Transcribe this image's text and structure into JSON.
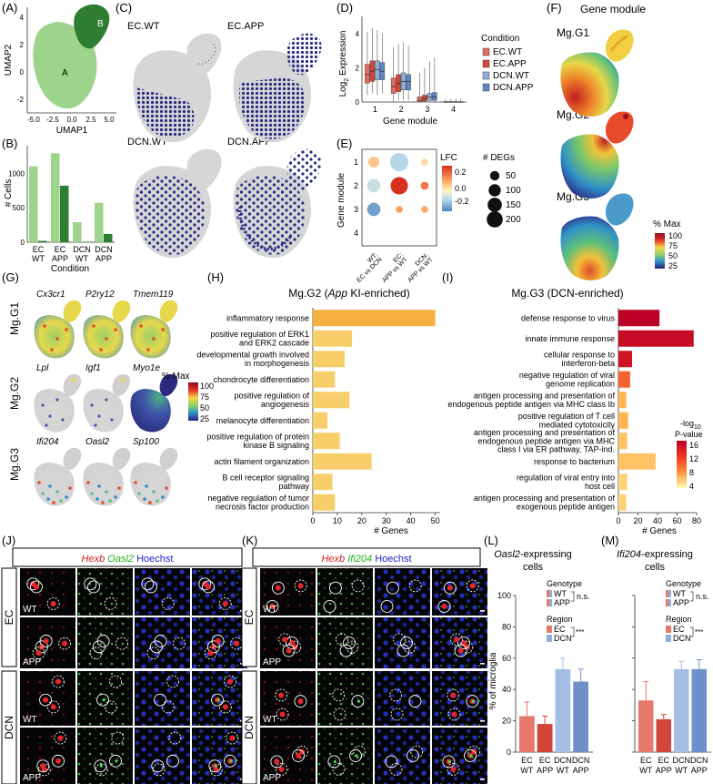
{
  "figure": {
    "panels": {
      "A": "(A)",
      "B": "(B)",
      "C": "(C)",
      "D": "(D)",
      "E": "(E)",
      "F": "(F)",
      "G": "(G)",
      "H": "(H)",
      "I": "(I)",
      "J": "(J)",
      "K": "(K)",
      "L": "(L)",
      "M": "(M)"
    },
    "panel_a": {
      "xlabel": "UMAP1",
      "ylabel": "UMAP2",
      "xticks": [
        "-5.0",
        "-2.5",
        "0.0",
        "2.5",
        "5.0"
      ],
      "yticks": [
        "4",
        "2",
        "0",
        "-2"
      ],
      "cluster_a": "A",
      "cluster_b": "B",
      "color_a": "#9dd48b",
      "color_b": "#2f7d32"
    },
    "panel_c": {
      "titles": [
        "EC.WT",
        "EC.APP",
        "DCN.WT",
        "DCN.APP"
      ],
      "cell_color": "#2a2a86"
    },
    "panel_f": {
      "title": "Gene module",
      "modules": [
        "Mg.G1",
        "Mg.G2",
        "Mg.G3"
      ],
      "scale_title": "% Max",
      "scale_ticks": [
        "100",
        "75",
        "50",
        "25"
      ]
    },
    "panel_g": {
      "rows": [
        "Mg.G1",
        "Mg.G2",
        "Mg.G3"
      ],
      "genes": [
        [
          "Cx3cr1",
          "P2ry12",
          "Tmem119"
        ],
        [
          "Lpl",
          "Igf1",
          "Myo1e"
        ],
        [
          "Ifi204",
          "Oasl2",
          "Sp100"
        ]
      ],
      "scale_title": "% Max",
      "scale_ticks": [
        "100",
        "75",
        "50",
        "25"
      ]
    },
    "panel_e": {
      "ylabel": "Gene module",
      "modules": [
        "1",
        "2",
        "3",
        "4"
      ],
      "columns": [
        [
          "WT:",
          "EC vs DCN"
        ],
        [
          "EC:",
          "APP vs WT"
        ],
        [
          "DCN:",
          "APP vs WT"
        ]
      ],
      "lfc_title": "LFC",
      "lfc_ticks": [
        "0.2",
        "0.0",
        "-0.2"
      ],
      "degs_title": "# DEGs",
      "degs_ticks": [
        "50",
        "100",
        "150",
        "200"
      ]
    },
    "panel_j": {
      "channels": [
        "Hexb",
        "Oasl2",
        "Hoechst"
      ],
      "channel_colors": [
        "#d62020",
        "#1db31d",
        "#2323c8"
      ],
      "row_labels": [
        "WT",
        "APP",
        "WT",
        "APP"
      ],
      "groups": [
        "EC",
        "DCN"
      ]
    },
    "panel_k": {
      "channels": [
        "Hexb",
        "Ifi204",
        "Hoechst"
      ],
      "channel_colors": [
        "#d62020",
        "#1db31d",
        "#2323c8"
      ],
      "row_labels": [
        "WT",
        "APP",
        "WT",
        "APP"
      ],
      "groups": [
        "EC",
        "DCN"
      ]
    }
  },
  "chart_data": [
    {
      "id": "B",
      "type": "bar",
      "categories": [
        [
          "EC",
          "WT"
        ],
        [
          "EC",
          "APP"
        ],
        [
          "DCN",
          "WT"
        ],
        [
          "DCN",
          "APP"
        ]
      ],
      "series": [
        {
          "name": "A",
          "values": [
            1100,
            1290,
            290,
            570
          ],
          "color": "#9dd48b"
        },
        {
          "name": "B",
          "values": [
            20,
            820,
            5,
            120
          ],
          "color": "#2f7d32"
        }
      ],
      "ylim": [
        0,
        1400
      ],
      "yticks": [
        "0",
        "500",
        "1000"
      ],
      "xlabel": "Condition",
      "ylabel": "# Cells"
    },
    {
      "id": "D",
      "type": "box",
      "categories": [
        "1",
        "2",
        "3",
        "4"
      ],
      "groups": [
        {
          "name": "EC.WT",
          "color": "#e46b5f"
        },
        {
          "name": "EC.APP",
          "color": "#d2453a"
        },
        {
          "name": "DCN.WT",
          "color": "#8fb0dd"
        },
        {
          "name": "DCN.APP",
          "color": "#5f87c4"
        }
      ],
      "boxes": [
        [
          [
            0.4,
            1.1,
            1.6,
            2.2,
            4.1
          ],
          [
            0.5,
            1.2,
            1.8,
            2.4,
            4.3
          ],
          [
            0.4,
            1.3,
            1.9,
            2.4,
            4.2
          ],
          [
            0.5,
            1.3,
            1.8,
            2.3,
            4.0
          ]
        ],
        [
          [
            0.0,
            0.5,
            0.9,
            1.4,
            3.2
          ],
          [
            0.1,
            0.6,
            1.1,
            1.6,
            3.4
          ],
          [
            0.1,
            0.7,
            1.2,
            1.7,
            3.5
          ],
          [
            0.1,
            0.7,
            1.2,
            1.6,
            3.3
          ]
        ],
        [
          [
            0.0,
            0.0,
            0.1,
            0.3,
            1.7
          ],
          [
            0.0,
            0.05,
            0.2,
            0.4,
            2.0
          ],
          [
            0.0,
            0.1,
            0.3,
            0.5,
            2.4
          ],
          [
            0.0,
            0.1,
            0.3,
            0.55,
            2.6
          ]
        ],
        [
          [
            0.0,
            0.0,
            0.0,
            0.02,
            0.15
          ],
          [
            0.0,
            0.0,
            0.0,
            0.02,
            0.15
          ],
          [
            0.0,
            0.0,
            0.0,
            0.02,
            0.18
          ],
          [
            0.0,
            0.0,
            0.0,
            0.02,
            0.2
          ]
        ]
      ],
      "ylim": [
        0,
        5
      ],
      "yticks": [
        "0",
        "2",
        "4"
      ],
      "xlabel": "Gene module",
      "ylabel": "Log",
      "ylabel_sub": "2",
      "ylabel_rest": " Expression",
      "legend_title": "Condition"
    },
    {
      "id": "E",
      "type": "dot",
      "points": [
        {
          "col": 0,
          "row": 0,
          "lfc": 0.05,
          "degs": 40
        },
        {
          "col": 0,
          "row": 1,
          "lfc": -0.12,
          "degs": 70
        },
        {
          "col": 0,
          "row": 2,
          "lfc": -0.25,
          "degs": 70
        },
        {
          "col": 1,
          "row": 0,
          "lfc": -0.15,
          "degs": 160
        },
        {
          "col": 1,
          "row": 1,
          "lfc": 0.3,
          "degs": 140
        },
        {
          "col": 1,
          "row": 2,
          "lfc": 0.12,
          "degs": 8
        },
        {
          "col": 2,
          "row": 0,
          "lfc": 0.02,
          "degs": 8
        },
        {
          "col": 2,
          "row": 1,
          "lfc": 0.18,
          "degs": 14
        },
        {
          "col": 2,
          "row": 2,
          "lfc": 0.1,
          "degs": 8
        }
      ],
      "lfc_range": [
        -0.3,
        0.3
      ],
      "degs_range": [
        0,
        200
      ]
    },
    {
      "id": "H",
      "type": "bar-horizontal",
      "title_prefix": "Mg.G2 (",
      "title_italic": "App",
      "title_suffix": " KI-enriched)",
      "terms": [
        [
          "inflammatory response"
        ],
        [
          "positive regulation of ERK1",
          "and ERK2 cascade"
        ],
        [
          "developmental growth involved",
          "in morphogenesis"
        ],
        [
          "chondrocyte differentiation"
        ],
        [
          "positive regulation of",
          "angiogenesis"
        ],
        [
          "melanocyte differentiation"
        ],
        [
          "positive regulation of protein",
          "kinase B signaling"
        ],
        [
          "actin filament organization"
        ],
        [
          "B cell receptor signaling",
          "pathway"
        ],
        [
          "negative regulation of tumor",
          "necrosis factor production"
        ]
      ],
      "values": [
        50,
        16,
        13,
        9,
        15,
        6,
        11,
        24,
        8,
        9
      ],
      "pvals": [
        7,
        5,
        5,
        4,
        5,
        4,
        4,
        5,
        4,
        4
      ],
      "xlim": [
        0,
        52
      ],
      "xticks": [
        "0",
        "10",
        "20",
        "30",
        "40",
        "50"
      ],
      "xtick_values": [
        0,
        10,
        20,
        30,
        40,
        50
      ],
      "xlabel": "# Genes"
    },
    {
      "id": "I",
      "type": "bar-horizontal",
      "title": "Mg.G3 (DCN-enriched)",
      "terms": [
        [
          "defense response to virus"
        ],
        [
          "innate immune response"
        ],
        [
          "cellular response to",
          "interferon-beta"
        ],
        [
          "negative regulation of viral",
          "genome replication"
        ],
        [
          "antigen processing and presentation of",
          "endogenous peptide antigen via MHC class Ib"
        ],
        [
          "positive regulation of T cell",
          "mediated cytotoxicity"
        ],
        [
          "antigen processing and presentation of",
          "endogenous peptide antigen via MHC",
          "class I via ER pathway, TAP-ind."
        ],
        [
          "response to bacterium"
        ],
        [
          "regulation of viral entry into",
          "host cell"
        ],
        [
          "antigen processing and presentation of",
          "exogenous peptide antigen"
        ]
      ],
      "values": [
        42,
        77,
        14,
        12,
        8,
        10,
        9,
        38,
        9,
        8
      ],
      "pvals": [
        16,
        15,
        14,
        9,
        6,
        6,
        5,
        5,
        4,
        4
      ],
      "xlim": [
        0,
        80
      ],
      "xticks": [
        "0",
        "20",
        "40",
        "60",
        "80"
      ],
      "xtick_values": [
        0,
        20,
        40,
        60,
        80
      ],
      "xlabel": "# Genes",
      "scale_title": "-log",
      "scale_title_sub": "10",
      "scale_title2": "P-value",
      "scale_ticks": [
        "16",
        "12",
        "8",
        "4"
      ]
    },
    {
      "id": "L",
      "type": "bar",
      "title_italic": "Oasl2",
      "title_rest": "-expressing",
      "title_line2": "cells",
      "categories": [
        [
          "EC",
          "WT"
        ],
        [
          "EC",
          "APP"
        ],
        [
          "DCN",
          "WT"
        ],
        [
          "DCN",
          "APP"
        ]
      ],
      "values": [
        23,
        18,
        53,
        45
      ],
      "errors": [
        9,
        5,
        7,
        8
      ],
      "colors": [
        "#e8786b",
        "#d2453a",
        "#a4bfe3",
        "#6f91cb"
      ],
      "ylim": [
        0,
        100
      ],
      "yticks": [
        "0",
        "20",
        "40",
        "60",
        "80",
        "100"
      ],
      "ytick_values": [
        0,
        20,
        40,
        60,
        80,
        100
      ],
      "ylabel": "% of microglia",
      "legend": {
        "genotype_title": "Genotype",
        "genotype": [
          "WT",
          "APP"
        ],
        "ns": "n.s.",
        "region_title": "Region",
        "region": [
          "EC",
          "DCN"
        ],
        "sig": "***"
      }
    },
    {
      "id": "M",
      "type": "bar",
      "title_italic": "Ifi204",
      "title_rest": "-expressing",
      "title_line2": "cells",
      "categories": [
        [
          "EC",
          "WT"
        ],
        [
          "EC",
          "APP"
        ],
        [
          "DCN",
          "WT"
        ],
        [
          "DCN",
          "APP"
        ]
      ],
      "values": [
        33,
        21,
        53,
        53
      ],
      "errors": [
        12,
        3,
        5,
        6
      ],
      "colors": [
        "#e8786b",
        "#d2453a",
        "#a4bfe3",
        "#6f91cb"
      ],
      "ylim": [
        0,
        100
      ],
      "yticks": [
        "0",
        "20",
        "40",
        "60",
        "80",
        "100"
      ],
      "ytick_values": [
        0,
        20,
        40,
        60,
        80,
        100
      ],
      "legend": {
        "genotype_title": "Genotype",
        "genotype": [
          "WT",
          "APP"
        ],
        "ns": "n.s.",
        "region_title": "Region",
        "region": [
          "EC",
          "DCN"
        ],
        "sig": "***"
      }
    }
  ]
}
